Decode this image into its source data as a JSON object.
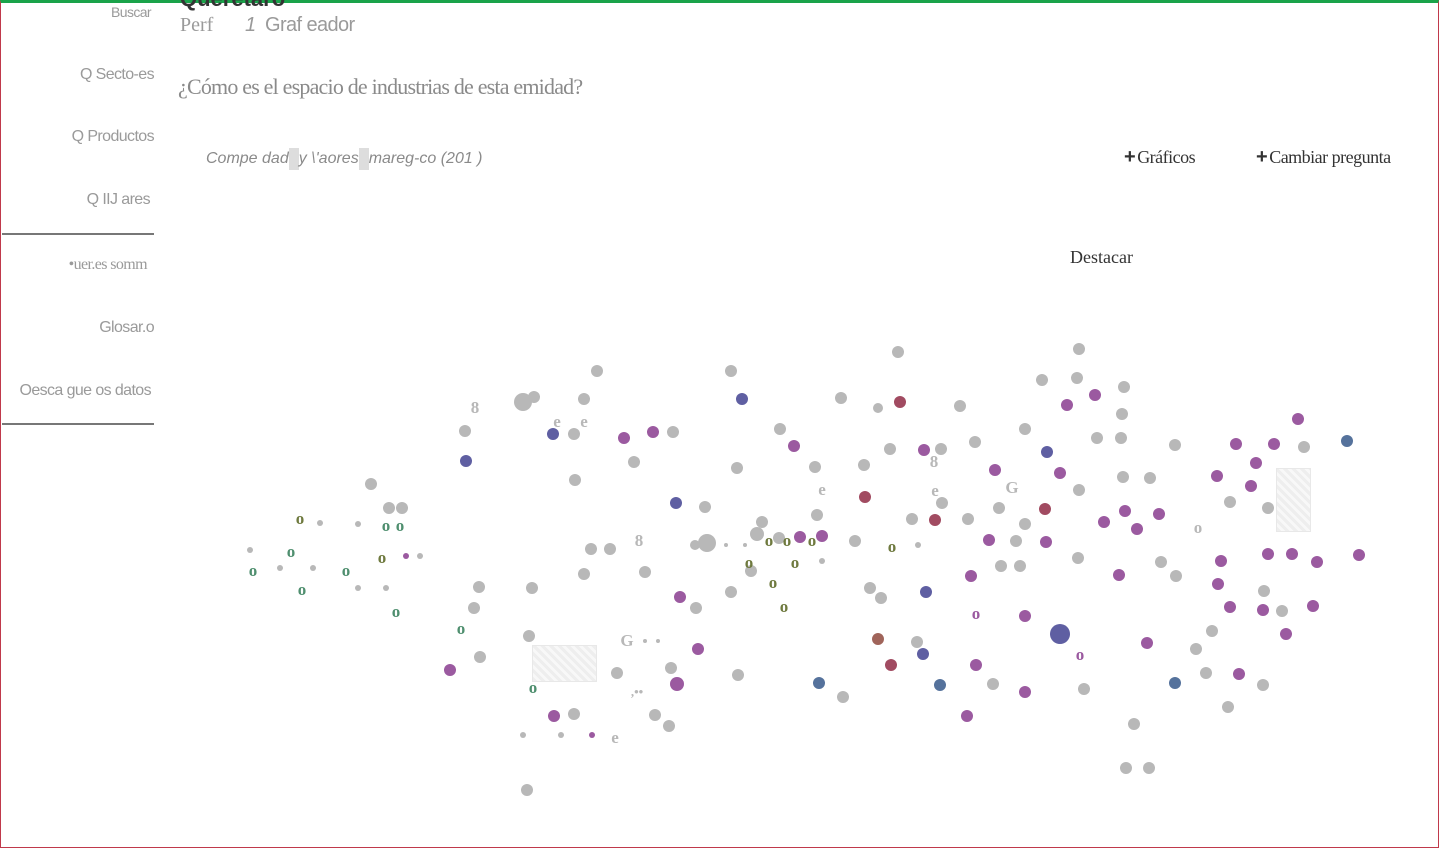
{
  "page": {
    "title": "Querétaro",
    "tabs": [
      {
        "label": "Perf"
      },
      {
        "label": "Graf eador"
      }
    ],
    "profile_number": "1",
    "question": "¿Cómo es el espacio de industrias de esta emidad?",
    "subtitle_parts": [
      "Compe dad",
      "y \\'aores",
      "mareg-co (201 )"
    ],
    "actions": {
      "graphs": "Gráficos",
      "change_question": "Cambiar pregunta"
    },
    "highlight_label": "Destacar"
  },
  "sidebar": {
    "search": "Buscar",
    "items": [
      {
        "label": "Q Secto-es"
      },
      {
        "label": "Q Productos"
      },
      {
        "label": "Q IIJ ares"
      }
    ],
    "secondary": [
      {
        "label": "•uer.es somm"
      },
      {
        "label": "Glosar.o"
      },
      {
        "label": "Oesca gue os datos"
      }
    ]
  },
  "colors": {
    "gray": "#b8b8b8",
    "purple": "#9b5aa0",
    "blue": "#5f5fa2",
    "maroon": "#a14b61",
    "brown": "#a0645a",
    "green": "#4f8f6f",
    "olive": "#6f7a3f",
    "steel": "#55729c"
  },
  "icons": [
    "search-icon",
    "plus-icon"
  ]
}
